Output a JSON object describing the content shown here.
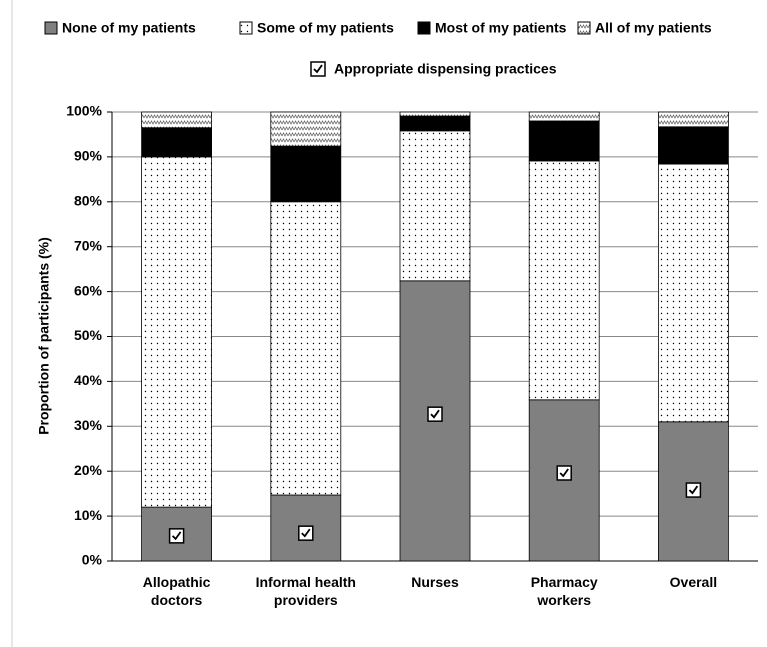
{
  "chart_data": {
    "type": "stacked_bar",
    "y_label": "Proportion of participants (%)",
    "categories": [
      "Allopathic doctors",
      "Informal health providers",
      "Nurses",
      "Pharmacy workers",
      "Overall"
    ],
    "series": [
      {
        "name": "None of my patients",
        "color": "#808080",
        "pattern": "solid",
        "values": [
          12,
          14.7,
          62.4,
          35.9,
          31
        ]
      },
      {
        "name": "Some of my patients",
        "color": "#ffffff",
        "pattern": "dots",
        "values": [
          78,
          65.3,
          33.4,
          53.2,
          57.4
        ]
      },
      {
        "name": "Most of my patients",
        "color": "#000000",
        "pattern": "solid",
        "values": [
          6.5,
          12.4,
          3.3,
          8.9,
          8.3
        ]
      },
      {
        "name": "All of my patients",
        "color": "#ffffff",
        "pattern": "zigzag",
        "values": [
          3.5,
          7.6,
          0.9,
          2,
          3.3
        ]
      }
    ],
    "markers": {
      "name": "Appropriate dispensing practices",
      "values": [
        5.6,
        6.2,
        32.7,
        19.6,
        15.8
      ]
    },
    "ylim": [
      0,
      100
    ],
    "yticks": [
      {
        "value": 0,
        "label": "0%"
      },
      {
        "value": 10,
        "label": "10%"
      },
      {
        "value": 20,
        "label": "20%"
      },
      {
        "value": 30,
        "label": "30%"
      },
      {
        "value": 40,
        "label": "40%"
      },
      {
        "value": 50,
        "label": "50%"
      },
      {
        "value": 60,
        "label": "60%"
      },
      {
        "value": 70,
        "label": "70%"
      },
      {
        "value": 80,
        "label": "80%"
      },
      {
        "value": 90,
        "label": "90%"
      },
      {
        "value": 100,
        "label": "100%"
      }
    ],
    "grid": true
  }
}
